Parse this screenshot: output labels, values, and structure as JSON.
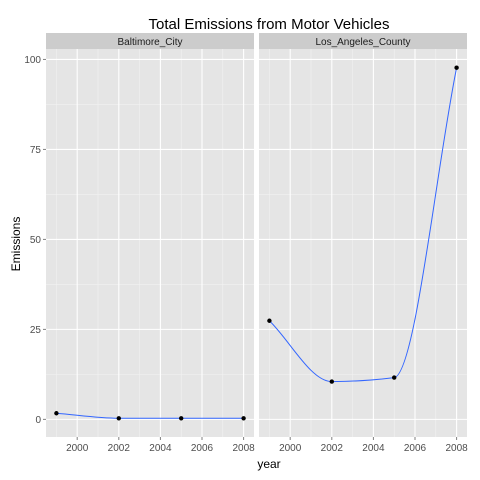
{
  "chart_data": {
    "type": "line",
    "title": "Total Emissions from Motor Vehicles",
    "xlabel": "year",
    "ylabel": "Emissions",
    "xlim": [
      1998.5,
      2008.5
    ],
    "ylim": [
      -4.9,
      102.9
    ],
    "x_ticks": [
      2000,
      2002,
      2004,
      2006,
      2008
    ],
    "y_ticks": [
      0,
      25,
      50,
      75,
      100
    ],
    "grid": true,
    "smooth": true,
    "facets": [
      {
        "name": "Baltimore_City",
        "x": [
          1999,
          2002,
          2005,
          2008
        ],
        "y": [
          1.7,
          0.3,
          0.3,
          0.3
        ]
      },
      {
        "name": "Los_Angeles_County",
        "x": [
          1999,
          2002,
          2005,
          2008
        ],
        "y": [
          27.4,
          10.5,
          11.6,
          97.7
        ]
      }
    ],
    "colors": {
      "panel_bg": "#e5e5e5",
      "strip_bg": "#cccccc",
      "grid_major": "#ffffff",
      "grid_minor": "#f2f2f2",
      "line": "#3366ff",
      "point": "#000000"
    }
  }
}
